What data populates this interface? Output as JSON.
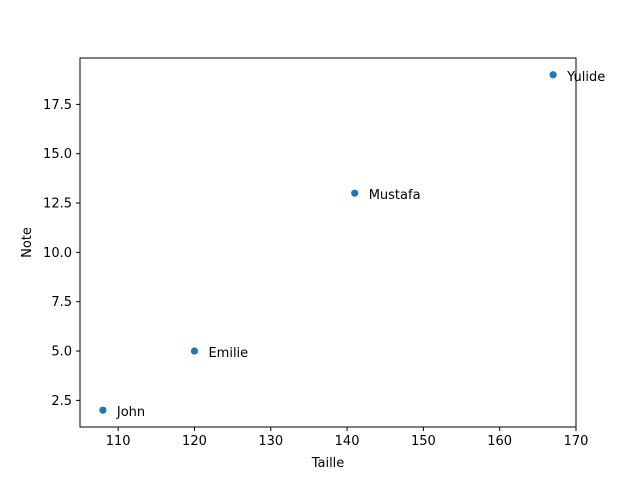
{
  "chart_data": {
    "type": "scatter",
    "title": "",
    "xlabel": "Taille",
    "ylabel": "Note",
    "xlim": [
      105,
      170
    ],
    "ylim": [
      1.15,
      19.85
    ],
    "xticks": [
      110,
      120,
      130,
      140,
      150,
      160,
      170
    ],
    "xtick_labels": [
      "110",
      "120",
      "130",
      "140",
      "150",
      "160",
      "170"
    ],
    "yticks": [
      2.5,
      5.0,
      7.5,
      10.0,
      12.5,
      15.0,
      17.5
    ],
    "ytick_labels": [
      "2.5",
      "5.0",
      "7.5",
      "10.0",
      "12.5",
      "15.0",
      "17.5"
    ],
    "grid": false,
    "legend": "none",
    "marker_color": "#1f77b4",
    "points": [
      {
        "x": 108,
        "y": 2,
        "label": "John"
      },
      {
        "x": 120,
        "y": 5,
        "label": "Emilie"
      },
      {
        "x": 141,
        "y": 13,
        "label": "Mustafa"
      },
      {
        "x": 167,
        "y": 19,
        "label": "Yulide"
      }
    ]
  }
}
